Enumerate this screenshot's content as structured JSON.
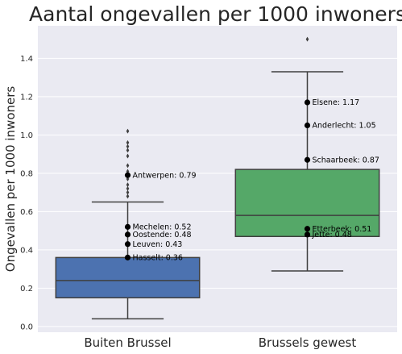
{
  "chart_data": {
    "type": "box",
    "title": "Aantal ongevallen per 1000 inwoners",
    "xlabel": "",
    "ylabel": "Ongevallen per 1000 inwoners",
    "ylim": [
      -0.03,
      1.57
    ],
    "yticks": [
      "0.0",
      "0.2",
      "0.4",
      "0.6",
      "0.8",
      "1.0",
      "1.2",
      "1.4"
    ],
    "grid": true,
    "legend": "none",
    "categories": [
      "Buiten Brussel",
      "Brussels gewest"
    ],
    "boxes": [
      {
        "category": "Buiten Brussel",
        "color": "#4c72b0",
        "whisker_low": 0.04,
        "q1": 0.15,
        "median": 0.24,
        "q3": 0.36,
        "whisker_high": 0.65,
        "outliers": [
          0.68,
          0.7,
          0.72,
          0.74,
          0.77,
          0.81,
          0.84,
          0.89,
          0.92,
          0.94,
          0.96,
          1.02
        ]
      },
      {
        "category": "Brussels gewest",
        "color": "#55a868",
        "whisker_low": 0.29,
        "q1": 0.47,
        "median": 0.58,
        "q3": 0.82,
        "whisker_high": 1.33,
        "outliers": [
          1.5
        ]
      }
    ],
    "annotations": [
      {
        "group": 0,
        "value": 0.79,
        "label": "Antwerpen: 0.79"
      },
      {
        "group": 0,
        "value": 0.52,
        "label": "Mechelen: 0.52"
      },
      {
        "group": 0,
        "value": 0.48,
        "label": "Oostende: 0.48"
      },
      {
        "group": 0,
        "value": 0.43,
        "label": "Leuven: 0.43"
      },
      {
        "group": 0,
        "value": 0.36,
        "label": "Hasselt: 0.36"
      },
      {
        "group": 1,
        "value": 1.17,
        "label": "Elsene: 1.17"
      },
      {
        "group": 1,
        "value": 1.05,
        "label": "Anderlecht: 1.05"
      },
      {
        "group": 1,
        "value": 0.87,
        "label": "Schaarbeek: 0.87"
      },
      {
        "group": 1,
        "value": 0.51,
        "label": "Etterbeek: 0.51"
      },
      {
        "group": 1,
        "value": 0.48,
        "label": "Jette: 0.48"
      }
    ],
    "colors": {
      "background": "#eaeaf2",
      "grid": "#ffffff",
      "line": "#3f3f3f",
      "marker": "#000000"
    }
  }
}
